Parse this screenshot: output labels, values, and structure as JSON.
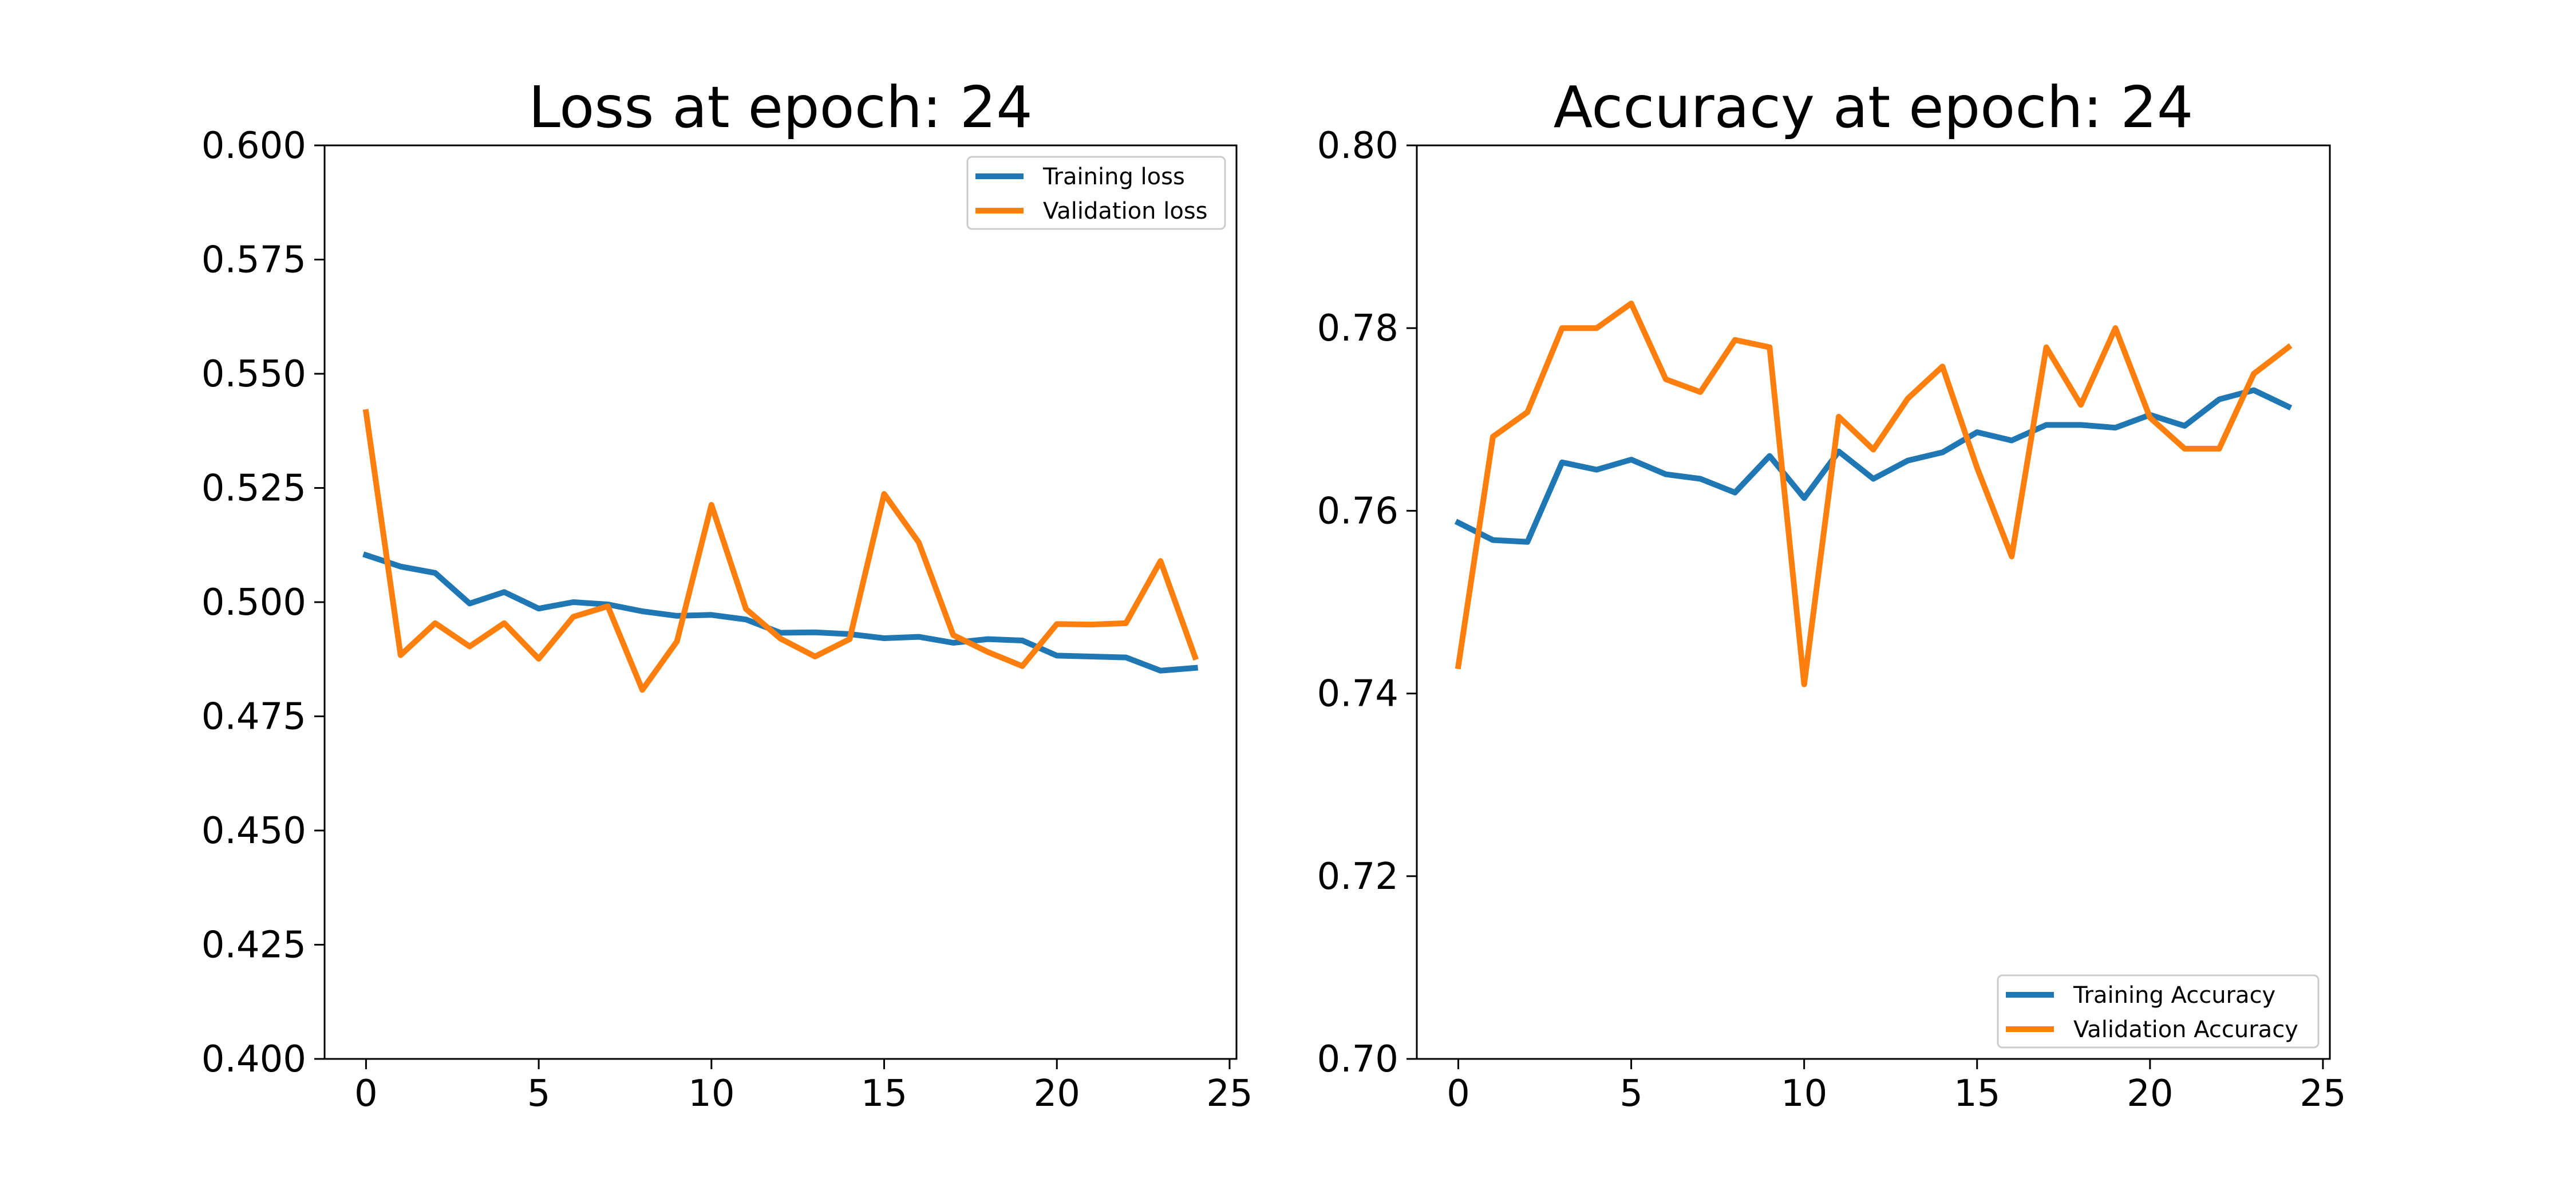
{
  "figure": {
    "background": "#ffffff"
  },
  "colors": {
    "training": "#1f77b4",
    "validation": "#ff7f0e",
    "axes": "#000000"
  },
  "chart_data": [
    {
      "type": "line",
      "title": "Loss at epoch: 24",
      "xlabel": "",
      "ylabel": "",
      "xlim": [
        -1.2,
        25.2
      ],
      "ylim": [
        0.4,
        0.6
      ],
      "xticks": [
        0,
        5,
        10,
        15,
        20,
        25
      ],
      "xtick_labels": [
        "0",
        "5",
        "10",
        "15",
        "20",
        "25"
      ],
      "yticks": [
        0.4,
        0.425,
        0.45,
        0.475,
        0.5,
        0.525,
        0.55,
        0.575,
        0.6
      ],
      "ytick_labels": [
        "0.400",
        "0.425",
        "0.450",
        "0.475",
        "0.500",
        "0.525",
        "0.550",
        "0.575",
        "0.600"
      ],
      "grid": false,
      "legend_position": "top-right",
      "x": [
        0,
        1,
        2,
        3,
        4,
        5,
        6,
        7,
        8,
        9,
        10,
        11,
        12,
        13,
        14,
        15,
        16,
        17,
        18,
        19,
        20,
        21,
        22,
        23,
        24
      ],
      "series": [
        {
          "name": "Training loss",
          "color": "#1f77b4",
          "values": [
            0.5103,
            0.5078,
            0.5064,
            0.4997,
            0.5022,
            0.4986,
            0.5,
            0.4995,
            0.498,
            0.497,
            0.4972,
            0.4962,
            0.4933,
            0.4934,
            0.493,
            0.4921,
            0.4924,
            0.4911,
            0.4919,
            0.4916,
            0.4883,
            0.4881,
            0.4879,
            0.485,
            0.4856
          ]
        },
        {
          "name": "Validation loss",
          "color": "#ff7f0e",
          "values": [
            0.5416,
            0.4884,
            0.4954,
            0.4903,
            0.4954,
            0.4876,
            0.4968,
            0.4991,
            0.4808,
            0.4914,
            0.5213,
            0.4985,
            0.492,
            0.4881,
            0.4919,
            0.5237,
            0.5131,
            0.4928,
            0.4891,
            0.486,
            0.4952,
            0.4951,
            0.4954,
            0.509,
            0.488
          ]
        }
      ]
    },
    {
      "type": "line",
      "title": "Accuracy at epoch: 24",
      "xlabel": "",
      "ylabel": "",
      "xlim": [
        -1.2,
        25.2
      ],
      "ylim": [
        0.7,
        0.8
      ],
      "xticks": [
        0,
        5,
        10,
        15,
        20,
        25
      ],
      "xtick_labels": [
        "0",
        "5",
        "10",
        "15",
        "20",
        "25"
      ],
      "yticks": [
        0.7,
        0.72,
        0.74,
        0.76,
        0.78,
        0.8
      ],
      "ytick_labels": [
        "0.70",
        "0.72",
        "0.74",
        "0.76",
        "0.78",
        "0.80"
      ],
      "grid": false,
      "legend_position": "bottom-right",
      "x": [
        0,
        1,
        2,
        3,
        4,
        5,
        6,
        7,
        8,
        9,
        10,
        11,
        12,
        13,
        14,
        15,
        16,
        17,
        18,
        19,
        20,
        21,
        22,
        23,
        24
      ],
      "series": [
        {
          "name": "Training Accuracy",
          "color": "#1f77b4",
          "values": [
            0.7587,
            0.7568,
            0.7566,
            0.7653,
            0.7645,
            0.7656,
            0.764,
            0.7635,
            0.762,
            0.766,
            0.7614,
            0.7665,
            0.7635,
            0.7655,
            0.7664,
            0.7686,
            0.7677,
            0.7694,
            0.7694,
            0.7691,
            0.7705,
            0.7693,
            0.7722,
            0.7732,
            0.7714
          ]
        },
        {
          "name": "Validation Accuracy",
          "color": "#ff7f0e",
          "values": [
            0.743,
            0.7681,
            0.7708,
            0.78,
            0.78,
            0.7827,
            0.7744,
            0.773,
            0.7787,
            0.7779,
            0.741,
            0.7703,
            0.7667,
            0.7723,
            0.7758,
            0.7647,
            0.755,
            0.7779,
            0.7716,
            0.78,
            0.7702,
            0.7668,
            0.7668,
            0.775,
            0.7779
          ]
        }
      ]
    }
  ]
}
